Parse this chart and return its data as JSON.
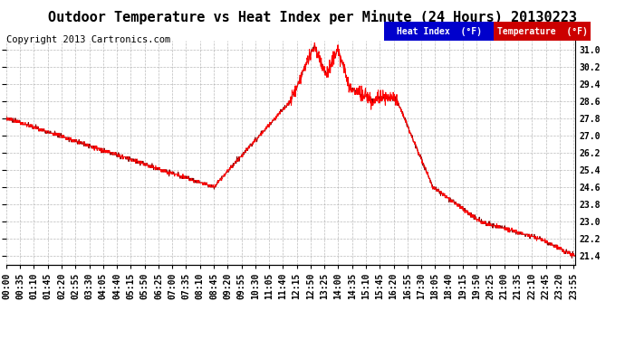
{
  "title": "Outdoor Temperature vs Heat Index per Minute (24 Hours) 20130223",
  "copyright": "Copyright 2013 Cartronics.com",
  "ylim": [
    21.0,
    31.4
  ],
  "yticks": [
    21.4,
    22.2,
    23.0,
    23.8,
    24.6,
    25.4,
    26.2,
    27.0,
    27.8,
    28.6,
    29.4,
    30.2,
    31.0
  ],
  "background_color": "#ffffff",
  "grid_color": "#aaaaaa",
  "line_color_heat": "#ff0000",
  "line_color_temp": "#880000",
  "legend_heat_bg": "#0000cc",
  "legend_temp_bg": "#cc0000",
  "title_fontsize": 11,
  "copyright_fontsize": 7.5,
  "tick_label_fontsize": 7,
  "xtick_step_minutes": 35
}
